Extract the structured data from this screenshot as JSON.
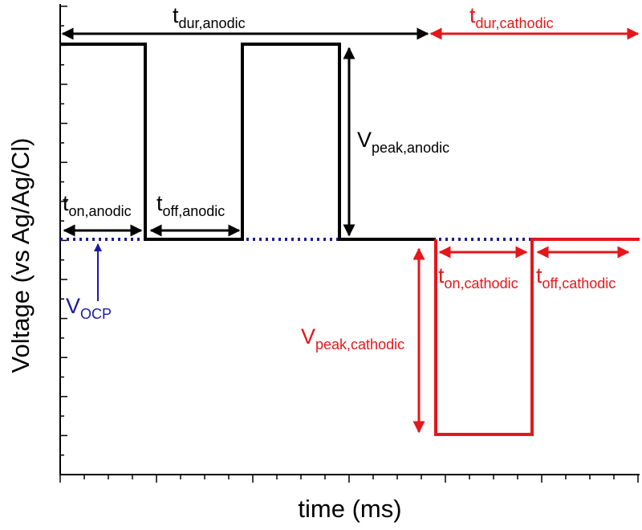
{
  "axes": {
    "x_label": "time (ms)",
    "y_label": "Voltage (vs Ag/Ag/Cl)"
  },
  "annotations": {
    "t_dur_anodic": {
      "main": "t",
      "sub": "dur,anodic"
    },
    "t_dur_cathodic": {
      "main": "t",
      "sub": "dur,cathodic"
    },
    "v_peak_anodic": {
      "main": "V",
      "sub": "peak,anodic"
    },
    "t_on_anodic": {
      "main": "t",
      "sub": "on,anodic"
    },
    "t_off_anodic": {
      "main": "t",
      "sub": "off,anodic"
    },
    "v_ocp": {
      "main": "V",
      "sub": "OCP"
    },
    "v_peak_cathodic": {
      "main": "V",
      "sub": "peak,cathodic"
    },
    "t_on_cathodic": {
      "main": "t",
      "sub": "on,cathodic"
    },
    "t_off_cathodic": {
      "main": "t",
      "sub": "off,cathodic"
    }
  }
}
